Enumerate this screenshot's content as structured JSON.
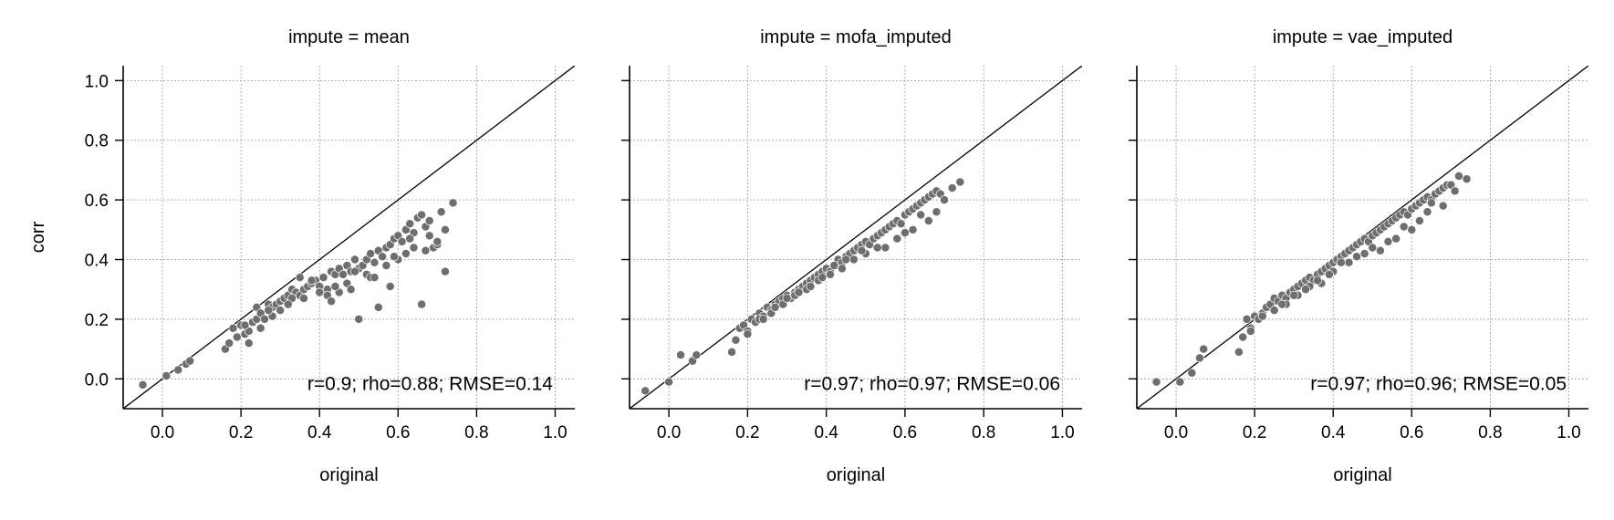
{
  "chart_data": [
    {
      "type": "scatter",
      "title": "impute = mean",
      "xlabel": "original",
      "ylabel": "corr",
      "xlim": [
        -0.1,
        1.05
      ],
      "ylim": [
        -0.1,
        1.05
      ],
      "xticks": [
        "0.0",
        "0.2",
        "0.4",
        "0.6",
        "0.8",
        "1.0"
      ],
      "yticks": [
        "0.0",
        "0.2",
        "0.4",
        "0.6",
        "0.8",
        "1.0"
      ],
      "grid": true,
      "reference_line": "y = x",
      "annotation": "r=0.9; rho=0.88; RMSE=0.14",
      "point_color": "#6e6e6e",
      "x": [
        -0.05,
        0.01,
        0.04,
        0.06,
        0.07,
        0.16,
        0.17,
        0.18,
        0.19,
        0.2,
        0.21,
        0.22,
        0.23,
        0.24,
        0.24,
        0.25,
        0.26,
        0.27,
        0.28,
        0.29,
        0.3,
        0.31,
        0.32,
        0.33,
        0.34,
        0.35,
        0.36,
        0.37,
        0.38,
        0.39,
        0.4,
        0.41,
        0.42,
        0.43,
        0.44,
        0.45,
        0.46,
        0.47,
        0.48,
        0.49,
        0.5,
        0.51,
        0.52,
        0.53,
        0.54,
        0.55,
        0.56,
        0.57,
        0.58,
        0.59,
        0.6,
        0.61,
        0.62,
        0.63,
        0.64,
        0.65,
        0.66,
        0.67,
        0.68,
        0.69,
        0.7,
        0.71,
        0.72,
        0.74,
        0.66,
        0.72,
        0.5,
        0.55,
        0.58,
        0.45,
        0.35,
        0.3,
        0.62,
        0.68,
        0.25,
        0.28,
        0.33,
        0.38,
        0.42,
        0.47,
        0.52,
        0.57,
        0.6,
        0.64,
        0.43,
        0.48,
        0.53,
        0.36,
        0.4,
        0.44,
        0.49,
        0.54,
        0.59,
        0.63,
        0.67,
        0.7,
        0.32,
        0.27,
        0.22,
        0.21
      ],
      "y": [
        -0.02,
        0.01,
        0.03,
        0.05,
        0.06,
        0.1,
        0.12,
        0.17,
        0.14,
        0.18,
        0.15,
        0.12,
        0.19,
        0.2,
        0.24,
        0.22,
        0.2,
        0.25,
        0.24,
        0.25,
        0.26,
        0.27,
        0.28,
        0.3,
        0.29,
        0.28,
        0.3,
        0.31,
        0.32,
        0.33,
        0.31,
        0.34,
        0.3,
        0.36,
        0.35,
        0.37,
        0.35,
        0.38,
        0.36,
        0.4,
        0.37,
        0.38,
        0.4,
        0.42,
        0.39,
        0.43,
        0.41,
        0.44,
        0.45,
        0.47,
        0.48,
        0.46,
        0.5,
        0.52,
        0.49,
        0.54,
        0.55,
        0.51,
        0.53,
        0.44,
        0.45,
        0.56,
        0.36,
        0.59,
        0.25,
        0.5,
        0.2,
        0.24,
        0.31,
        0.29,
        0.34,
        0.23,
        0.42,
        0.48,
        0.17,
        0.21,
        0.27,
        0.33,
        0.28,
        0.32,
        0.35,
        0.38,
        0.4,
        0.44,
        0.26,
        0.3,
        0.34,
        0.27,
        0.29,
        0.31,
        0.36,
        0.34,
        0.41,
        0.47,
        0.43,
        0.46,
        0.25,
        0.23,
        0.16,
        0.18
      ]
    },
    {
      "type": "scatter",
      "title": "impute = mofa_imputed",
      "xlabel": "original",
      "ylabel": "",
      "xlim": [
        -0.1,
        1.05
      ],
      "ylim": [
        -0.1,
        1.05
      ],
      "xticks": [
        "0.0",
        "0.2",
        "0.4",
        "0.6",
        "0.8",
        "1.0"
      ],
      "grid": true,
      "reference_line": "y = x",
      "annotation": "r=0.97; rho=0.97; RMSE=0.06",
      "point_color": "#6e6e6e",
      "x": [
        -0.06,
        0.0,
        0.03,
        0.06,
        0.07,
        0.16,
        0.17,
        0.18,
        0.19,
        0.2,
        0.21,
        0.22,
        0.23,
        0.24,
        0.25,
        0.26,
        0.27,
        0.28,
        0.29,
        0.3,
        0.31,
        0.32,
        0.33,
        0.34,
        0.35,
        0.36,
        0.37,
        0.38,
        0.39,
        0.4,
        0.41,
        0.42,
        0.43,
        0.44,
        0.45,
        0.46,
        0.47,
        0.48,
        0.49,
        0.5,
        0.51,
        0.52,
        0.53,
        0.54,
        0.55,
        0.56,
        0.57,
        0.58,
        0.59,
        0.6,
        0.61,
        0.62,
        0.63,
        0.64,
        0.65,
        0.66,
        0.67,
        0.68,
        0.69,
        0.7,
        0.72,
        0.74,
        0.68,
        0.66,
        0.58,
        0.55,
        0.5,
        0.47,
        0.44,
        0.41,
        0.38,
        0.35,
        0.32,
        0.29,
        0.26,
        0.23,
        0.2,
        0.62,
        0.6,
        0.53,
        0.49,
        0.45,
        0.42,
        0.39,
        0.36,
        0.33,
        0.3,
        0.27,
        0.24,
        0.64
      ],
      "y": [
        -0.04,
        -0.01,
        0.08,
        0.06,
        0.08,
        0.09,
        0.13,
        0.17,
        0.18,
        0.16,
        0.2,
        0.19,
        0.22,
        0.21,
        0.24,
        0.23,
        0.25,
        0.26,
        0.27,
        0.28,
        0.27,
        0.29,
        0.3,
        0.31,
        0.32,
        0.33,
        0.34,
        0.35,
        0.36,
        0.37,
        0.36,
        0.38,
        0.4,
        0.39,
        0.41,
        0.42,
        0.43,
        0.44,
        0.45,
        0.46,
        0.45,
        0.47,
        0.48,
        0.49,
        0.5,
        0.51,
        0.52,
        0.53,
        0.52,
        0.55,
        0.56,
        0.57,
        0.58,
        0.59,
        0.6,
        0.61,
        0.62,
        0.63,
        0.62,
        0.6,
        0.64,
        0.66,
        0.56,
        0.53,
        0.47,
        0.44,
        0.42,
        0.4,
        0.37,
        0.35,
        0.33,
        0.3,
        0.28,
        0.25,
        0.22,
        0.2,
        0.15,
        0.5,
        0.49,
        0.44,
        0.43,
        0.4,
        0.38,
        0.34,
        0.31,
        0.29,
        0.27,
        0.24,
        0.2,
        0.55
      ]
    },
    {
      "type": "scatter",
      "title": "impute = vae_imputed",
      "xlabel": "original",
      "ylabel": "",
      "xlim": [
        -0.1,
        1.05
      ],
      "ylim": [
        -0.1,
        1.05
      ],
      "xticks": [
        "0.0",
        "0.2",
        "0.4",
        "0.6",
        "0.8",
        "1.0"
      ],
      "grid": true,
      "reference_line": "y = x",
      "annotation": "r=0.97; rho=0.96; RMSE=0.05",
      "point_color": "#6e6e6e",
      "x": [
        -0.05,
        0.01,
        0.04,
        0.06,
        0.07,
        0.16,
        0.17,
        0.18,
        0.19,
        0.2,
        0.21,
        0.22,
        0.23,
        0.24,
        0.25,
        0.26,
        0.27,
        0.28,
        0.29,
        0.3,
        0.31,
        0.32,
        0.33,
        0.34,
        0.35,
        0.36,
        0.37,
        0.38,
        0.39,
        0.4,
        0.41,
        0.42,
        0.43,
        0.44,
        0.45,
        0.46,
        0.47,
        0.48,
        0.49,
        0.5,
        0.51,
        0.52,
        0.53,
        0.54,
        0.55,
        0.56,
        0.57,
        0.58,
        0.59,
        0.6,
        0.61,
        0.62,
        0.63,
        0.64,
        0.65,
        0.66,
        0.67,
        0.68,
        0.69,
        0.7,
        0.72,
        0.74,
        0.71,
        0.68,
        0.65,
        0.6,
        0.56,
        0.52,
        0.48,
        0.44,
        0.4,
        0.37,
        0.34,
        0.31,
        0.28,
        0.25,
        0.22,
        0.19,
        0.62,
        0.58,
        0.54,
        0.5,
        0.46,
        0.42,
        0.39,
        0.36,
        0.33,
        0.3,
        0.27,
        0.64
      ],
      "y": [
        -0.01,
        -0.01,
        0.02,
        0.07,
        0.1,
        0.09,
        0.14,
        0.2,
        0.17,
        0.21,
        0.2,
        0.22,
        0.24,
        0.25,
        0.27,
        0.26,
        0.28,
        0.27,
        0.29,
        0.3,
        0.31,
        0.32,
        0.33,
        0.34,
        0.33,
        0.35,
        0.36,
        0.37,
        0.38,
        0.39,
        0.4,
        0.41,
        0.42,
        0.43,
        0.44,
        0.45,
        0.46,
        0.47,
        0.46,
        0.48,
        0.49,
        0.5,
        0.51,
        0.52,
        0.53,
        0.54,
        0.55,
        0.56,
        0.55,
        0.57,
        0.58,
        0.59,
        0.6,
        0.61,
        0.6,
        0.62,
        0.63,
        0.64,
        0.65,
        0.65,
        0.68,
        0.67,
        0.63,
        0.58,
        0.59,
        0.5,
        0.47,
        0.43,
        0.42,
        0.39,
        0.36,
        0.32,
        0.31,
        0.28,
        0.25,
        0.23,
        0.21,
        0.16,
        0.53,
        0.51,
        0.46,
        0.44,
        0.41,
        0.39,
        0.35,
        0.33,
        0.3,
        0.28,
        0.25,
        0.56
      ]
    }
  ]
}
